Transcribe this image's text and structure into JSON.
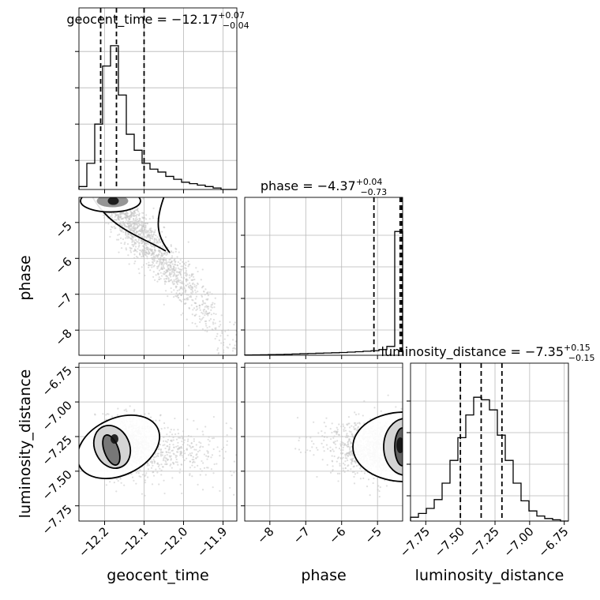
{
  "chart_data": {
    "type": "corner",
    "parameters": [
      "geocent_time",
      "phase",
      "luminosity_distance"
    ],
    "titles": [
      {
        "prefix": "geocent_time = ",
        "value": "−12.17",
        "plus": "+0.07",
        "minus": "−0.04"
      },
      {
        "prefix": "phase = ",
        "value": "−4.37",
        "plus": "+0.04",
        "minus": "−0.73"
      },
      {
        "prefix": "luminosity_distance = ",
        "value": "−7.35",
        "plus": "+0.15",
        "minus": "−0.15"
      }
    ],
    "ranges": {
      "geocent_time": [
        -12.265,
        -11.865
      ],
      "phase": [
        -8.7,
        -4.3
      ],
      "luminosity_distance": [
        -7.86,
        -6.72
      ]
    },
    "ticks": {
      "geocent_time": [
        -12.2,
        -12.1,
        -12.0,
        -11.9
      ],
      "phase": [
        -8,
        -7,
        -6,
        -5
      ],
      "luminosity_distance": [
        -7.75,
        -7.5,
        -7.25,
        -7.0,
        -6.75
      ]
    },
    "tick_labels": {
      "geocent_time": [
        "−12.2",
        "−12.1",
        "−12.0",
        "−11.9"
      ],
      "phase": [
        "−8",
        "−7",
        "−6",
        "−5"
      ],
      "luminosity_distance": [
        "−7.75",
        "−7.50",
        "−7.25",
        "−7.00",
        "−6.75"
      ]
    },
    "quantiles": {
      "geocent_time": [
        -12.21,
        -12.17,
        -12.1
      ],
      "phase": [
        -5.1,
        -4.37,
        -4.33
      ],
      "luminosity_distance": [
        -7.5,
        -7.35,
        -7.2
      ]
    },
    "histograms": {
      "geocent_time": {
        "edges": [
          -12.265,
          -12.245,
          -12.225,
          -12.205,
          -12.185,
          -12.165,
          -12.145,
          -12.125,
          -12.105,
          -12.085,
          -12.065,
          -12.045,
          -12.025,
          -12.005,
          -11.985,
          -11.965,
          -11.945,
          -11.925,
          -11.905,
          -11.885,
          -11.865
        ],
        "counts": [
          0.02,
          0.18,
          0.45,
          0.85,
          0.99,
          0.65,
          0.38,
          0.27,
          0.18,
          0.14,
          0.12,
          0.09,
          0.07,
          0.05,
          0.04,
          0.03,
          0.02,
          0.01,
          0,
          0
        ]
      },
      "phase": {
        "edges": [
          -8.7,
          -8.48,
          -8.26,
          -8.04,
          -7.82,
          -7.6,
          -7.38,
          -7.16,
          -6.94,
          -6.72,
          -6.5,
          -6.28,
          -6.06,
          -5.84,
          -5.62,
          -5.4,
          -5.18,
          -4.96,
          -4.74,
          -4.52,
          -4.3
        ],
        "counts": [
          0.002,
          0.003,
          0.004,
          0.005,
          0.006,
          0.008,
          0.01,
          0.012,
          0.014,
          0.016,
          0.018,
          0.02,
          0.022,
          0.025,
          0.028,
          0.032,
          0.036,
          0.045,
          0.07,
          0.98
        ]
      },
      "luminosity_distance": {
        "edges": [
          -7.86,
          -7.803,
          -7.746,
          -7.689,
          -7.632,
          -7.575,
          -7.518,
          -7.461,
          -7.404,
          -7.347,
          -7.29,
          -7.233,
          -7.176,
          -7.119,
          -7.062,
          -7.005,
          -6.948,
          -6.891,
          -6.834,
          -6.777,
          -6.72
        ],
        "counts": [
          0.03,
          0.06,
          0.1,
          0.17,
          0.3,
          0.48,
          0.66,
          0.84,
          0.98,
          0.96,
          0.88,
          0.68,
          0.48,
          0.3,
          0.16,
          0.08,
          0.04,
          0.02,
          0.01,
          0
        ]
      }
    },
    "scatter_2d": [
      {
        "x": "geocent_time",
        "y": "phase",
        "n_points": 1500,
        "center": [
          -12.185,
          -4.4
        ],
        "trend": {
          "x_at": -12.03,
          "y_at": -6.2
        },
        "contour_levels": 2
      },
      {
        "x": "geocent_time",
        "y": "luminosity_distance",
        "n_points": 1500,
        "center": [
          -12.18,
          -7.3
        ],
        "contour_levels": 3
      },
      {
        "x": "phase",
        "y": "luminosity_distance",
        "n_points": 1500,
        "center": [
          -4.4,
          -7.33
        ],
        "contour_levels": 3
      }
    ],
    "grid": true,
    "legend": "none"
  }
}
